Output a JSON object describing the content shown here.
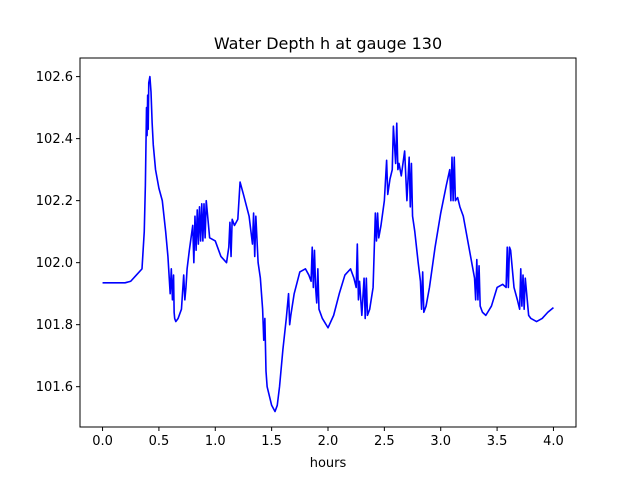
{
  "chart_data": {
    "type": "line",
    "title": "Water Depth h at gauge 130",
    "xlabel": "hours",
    "ylabel": "",
    "xlim": [
      -0.2,
      4.2
    ],
    "ylim": [
      101.47,
      102.66
    ],
    "xticks": [
      0.0,
      0.5,
      1.0,
      1.5,
      2.0,
      2.5,
      3.0,
      3.5,
      4.0
    ],
    "xtick_labels": [
      "0.0",
      "0.5",
      "1.0",
      "1.5",
      "2.0",
      "2.5",
      "3.0",
      "3.5",
      "4.0"
    ],
    "yticks": [
      101.6,
      101.8,
      102.0,
      102.2,
      102.4,
      102.6
    ],
    "ytick_labels": [
      "101.6",
      "101.8",
      "102.0",
      "102.2",
      "102.4",
      "102.6"
    ],
    "grid": false,
    "series": [
      {
        "color": "#0000ff",
        "x": [
          0.0,
          0.1,
          0.2,
          0.25,
          0.3,
          0.35,
          0.37,
          0.38,
          0.39,
          0.395,
          0.4,
          0.405,
          0.41,
          0.415,
          0.42,
          0.43,
          0.44,
          0.45,
          0.47,
          0.5,
          0.53,
          0.56,
          0.58,
          0.6,
          0.61,
          0.62,
          0.63,
          0.635,
          0.64,
          0.65,
          0.67,
          0.7,
          0.72,
          0.73,
          0.74,
          0.75,
          0.77,
          0.8,
          0.81,
          0.82,
          0.83,
          0.84,
          0.85,
          0.86,
          0.87,
          0.88,
          0.89,
          0.9,
          0.91,
          0.92,
          0.95,
          1.0,
          1.05,
          1.1,
          1.12,
          1.13,
          1.14,
          1.15,
          1.17,
          1.2,
          1.22,
          1.25,
          1.3,
          1.33,
          1.34,
          1.35,
          1.36,
          1.38,
          1.4,
          1.42,
          1.43,
          1.44,
          1.45,
          1.46,
          1.5,
          1.53,
          1.55,
          1.57,
          1.6,
          1.63,
          1.65,
          1.66,
          1.67,
          1.7,
          1.75,
          1.8,
          1.83,
          1.85,
          1.86,
          1.87,
          1.88,
          1.89,
          1.9,
          1.91,
          1.92,
          1.95,
          2.0,
          2.05,
          2.1,
          2.15,
          2.2,
          2.23,
          2.25,
          2.26,
          2.27,
          2.28,
          2.3,
          2.32,
          2.33,
          2.34,
          2.35,
          2.37,
          2.4,
          2.42,
          2.43,
          2.44,
          2.45,
          2.47,
          2.5,
          2.52,
          2.53,
          2.55,
          2.57,
          2.58,
          2.6,
          2.61,
          2.62,
          2.63,
          2.65,
          2.68,
          2.7,
          2.72,
          2.73,
          2.74,
          2.75,
          2.77,
          2.8,
          2.82,
          2.83,
          2.84,
          2.85,
          2.87,
          2.9,
          2.95,
          3.0,
          3.05,
          3.08,
          3.09,
          3.1,
          3.11,
          3.12,
          3.13,
          3.15,
          3.17,
          3.2,
          3.25,
          3.3,
          3.31,
          3.32,
          3.33,
          3.34,
          3.35,
          3.37,
          3.4,
          3.45,
          3.5,
          3.55,
          3.58,
          3.59,
          3.6,
          3.61,
          3.62,
          3.65,
          3.68,
          3.7,
          3.71,
          3.72,
          3.73,
          3.74,
          3.75,
          3.78,
          3.8,
          3.85,
          3.9,
          3.95,
          4.0
        ],
        "y": [
          101.935,
          101.935,
          101.935,
          101.94,
          101.96,
          101.98,
          102.1,
          102.25,
          102.5,
          102.41,
          102.54,
          102.43,
          102.58,
          102.59,
          102.6,
          102.55,
          102.45,
          102.38,
          102.3,
          102.24,
          102.2,
          102.1,
          102.02,
          101.9,
          101.98,
          101.88,
          101.96,
          101.84,
          101.82,
          101.81,
          101.82,
          101.85,
          101.96,
          101.88,
          101.92,
          101.98,
          102.04,
          102.12,
          102.0,
          102.15,
          102.04,
          102.17,
          102.06,
          102.18,
          102.07,
          102.19,
          102.07,
          102.19,
          102.08,
          102.2,
          102.08,
          102.07,
          102.02,
          102.0,
          102.05,
          102.13,
          102.02,
          102.14,
          102.12,
          102.14,
          102.26,
          102.22,
          102.15,
          102.06,
          102.16,
          102.02,
          102.15,
          102.0,
          101.95,
          101.85,
          101.75,
          101.82,
          101.65,
          101.6,
          101.54,
          101.52,
          101.54,
          101.6,
          101.72,
          101.82,
          101.9,
          101.8,
          101.83,
          101.9,
          101.97,
          101.98,
          101.96,
          101.94,
          102.05,
          101.92,
          102.04,
          101.92,
          101.87,
          101.98,
          101.85,
          101.82,
          101.79,
          101.83,
          101.9,
          101.96,
          101.98,
          101.95,
          101.92,
          102.06,
          101.88,
          101.94,
          101.83,
          101.95,
          101.82,
          101.95,
          101.83,
          101.85,
          101.92,
          102.16,
          102.07,
          102.16,
          102.08,
          102.12,
          102.2,
          102.33,
          102.22,
          102.27,
          102.3,
          102.44,
          102.32,
          102.45,
          102.3,
          102.32,
          102.28,
          102.36,
          102.2,
          102.34,
          102.18,
          102.32,
          102.15,
          102.1,
          102.0,
          101.94,
          101.85,
          101.97,
          101.84,
          101.86,
          101.92,
          102.05,
          102.16,
          102.25,
          102.3,
          102.2,
          102.34,
          102.2,
          102.34,
          102.2,
          102.21,
          102.18,
          102.15,
          102.05,
          101.95,
          101.88,
          102.01,
          101.88,
          101.99,
          101.86,
          101.84,
          101.83,
          101.86,
          101.92,
          101.93,
          101.92,
          102.05,
          101.92,
          102.05,
          102.04,
          101.92,
          101.88,
          101.85,
          101.98,
          101.86,
          101.96,
          101.85,
          101.95,
          101.83,
          101.82,
          101.81,
          101.82,
          101.84,
          101.855
        ]
      }
    ]
  }
}
